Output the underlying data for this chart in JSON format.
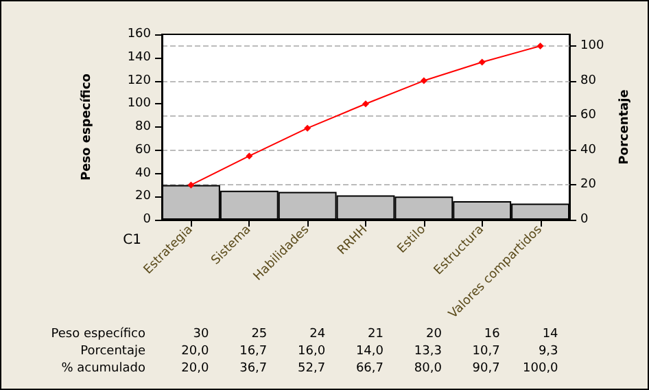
{
  "chart_data": {
    "type": "bar",
    "xlabel": "C1",
    "ylabel": "Peso específico",
    "y2label": "Porcentaje",
    "categories": [
      "Estrategia",
      "Sistema",
      "Habilidades",
      "RRHH",
      "Estilo",
      "Estructura",
      "Valores compartidos"
    ],
    "series": [
      {
        "color": "#c0c0c0",
        "values": [
          30,
          25,
          24,
          21,
          20,
          16,
          14
        ],
        "value_labels": [
          "30",
          "25",
          "24",
          "21",
          "20",
          "16",
          "14"
        ]
      },
      {
        "type": "line",
        "axis": "y2",
        "color": "#ff0000",
        "values": [
          20.0,
          36.7,
          52.7,
          66.7,
          80.0,
          90.7,
          100.0
        ],
        "value_labels": [
          "20,0",
          "36,7",
          "52,7",
          "66,7",
          "80,0",
          "90,7",
          "100,0"
        ]
      }
    ],
    "annotations": [
      "Peso específico",
      "Porcentaje",
      "% acumulado",
      "20,0",
      "16,7",
      "16,0",
      "14,0",
      "13,3",
      "10,7",
      "9,3"
    ],
    "ylim": [
      0,
      160
    ],
    "yticks": [
      0,
      20,
      40,
      60,
      80,
      100,
      120,
      140,
      160
    ],
    "y2lim": [
      0,
      106.7
    ],
    "y2ticks": [
      0,
      20,
      40,
      60,
      80,
      100
    ],
    "grid": true,
    "marker": "diamond",
    "line_style": "solid"
  }
}
